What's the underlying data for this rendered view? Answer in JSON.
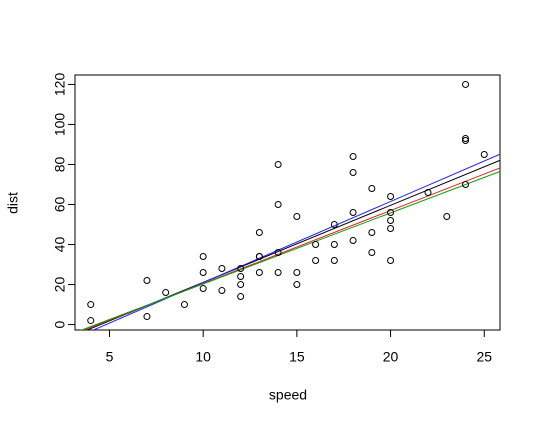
{
  "chart_data": {
    "type": "scatter",
    "x_label": "speed",
    "y_label": "dist",
    "x": [
      4,
      4,
      7,
      7,
      8,
      9,
      10,
      10,
      10,
      11,
      11,
      12,
      12,
      12,
      12,
      13,
      13,
      13,
      13,
      14,
      14,
      14,
      14,
      15,
      15,
      15,
      16,
      16,
      17,
      17,
      17,
      18,
      18,
      18,
      18,
      19,
      19,
      19,
      20,
      20,
      20,
      20,
      20,
      22,
      23,
      24,
      24,
      24,
      24,
      25
    ],
    "values": [
      2,
      10,
      4,
      22,
      16,
      10,
      18,
      26,
      34,
      17,
      28,
      14,
      20,
      24,
      28,
      26,
      34,
      34,
      46,
      26,
      36,
      60,
      80,
      20,
      26,
      54,
      32,
      40,
      32,
      40,
      50,
      42,
      56,
      76,
      84,
      36,
      46,
      68,
      32,
      48,
      52,
      56,
      64,
      66,
      54,
      70,
      92,
      93,
      120,
      85
    ],
    "color": "#000000",
    "fit_lines": [
      {
        "color": "#000000",
        "intercept": -17.4,
        "slope": 3.85
      },
      {
        "color": "#2020ff",
        "intercept": -19.5,
        "slope": 4.05
      },
      {
        "color": "#e02020",
        "intercept": -16.0,
        "slope": 3.65
      },
      {
        "color": "#10a010",
        "intercept": -15.2,
        "slope": 3.55
      }
    ],
    "xlim": [
      3.16,
      25.84
    ],
    "ylim": [
      -2.72,
      124.72
    ],
    "xticks": [
      5,
      10,
      15,
      20,
      25
    ],
    "yticks": [
      0,
      20,
      40,
      60,
      80,
      100,
      120
    ]
  }
}
